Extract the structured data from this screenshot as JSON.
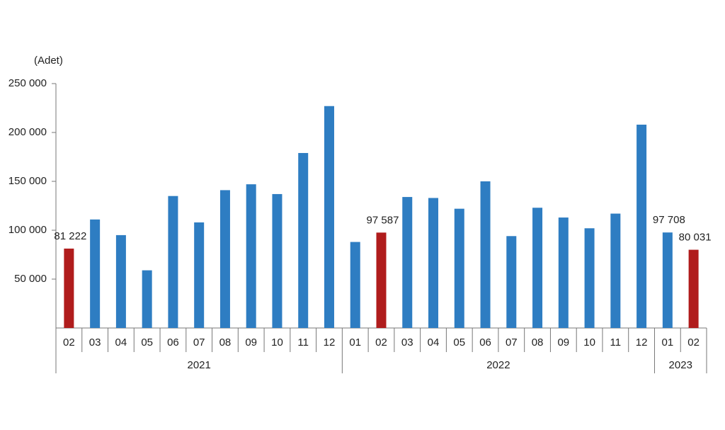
{
  "chart_data": {
    "type": "bar",
    "y_axis_label": "(Adet)",
    "categories": [
      "02",
      "03",
      "04",
      "05",
      "06",
      "07",
      "08",
      "09",
      "10",
      "11",
      "12",
      "01",
      "02",
      "03",
      "04",
      "05",
      "06",
      "07",
      "08",
      "09",
      "10",
      "11",
      "12",
      "01",
      "02"
    ],
    "groups": [
      "2021",
      null,
      null,
      null,
      null,
      null,
      null,
      null,
      null,
      null,
      null,
      "2022",
      null,
      null,
      null,
      null,
      null,
      null,
      null,
      null,
      null,
      null,
      null,
      "2023",
      null
    ],
    "values": [
      81222,
      111000,
      95000,
      59000,
      135000,
      108000,
      141000,
      147000,
      137000,
      179000,
      227000,
      88000,
      97587,
      134000,
      133000,
      122000,
      150000,
      94000,
      123000,
      113000,
      102000,
      117000,
      208000,
      97708,
      80031
    ],
    "value_labels": [
      "81 222",
      null,
      null,
      null,
      null,
      null,
      null,
      null,
      null,
      null,
      null,
      null,
      "97 587",
      null,
      null,
      null,
      null,
      null,
      null,
      null,
      null,
      null,
      null,
      "97 708",
      "80 031"
    ],
    "colors": [
      "#b01c1c",
      "#2e7dc2",
      "#2e7dc2",
      "#2e7dc2",
      "#2e7dc2",
      "#2e7dc2",
      "#2e7dc2",
      "#2e7dc2",
      "#2e7dc2",
      "#2e7dc2",
      "#2e7dc2",
      "#2e7dc2",
      "#b01c1c",
      "#2e7dc2",
      "#2e7dc2",
      "#2e7dc2",
      "#2e7dc2",
      "#2e7dc2",
      "#2e7dc2",
      "#2e7dc2",
      "#2e7dc2",
      "#2e7dc2",
      "#2e7dc2",
      "#2e7dc2",
      "#b01c1c"
    ],
    "ylim": [
      0,
      250000
    ],
    "yticks": [
      {
        "value": 50000,
        "label": "50 000"
      },
      {
        "value": 100000,
        "label": "100 000"
      },
      {
        "value": 150000,
        "label": "150 000"
      },
      {
        "value": 200000,
        "label": "200 000"
      },
      {
        "value": 250000,
        "label": "250 000"
      }
    ]
  }
}
